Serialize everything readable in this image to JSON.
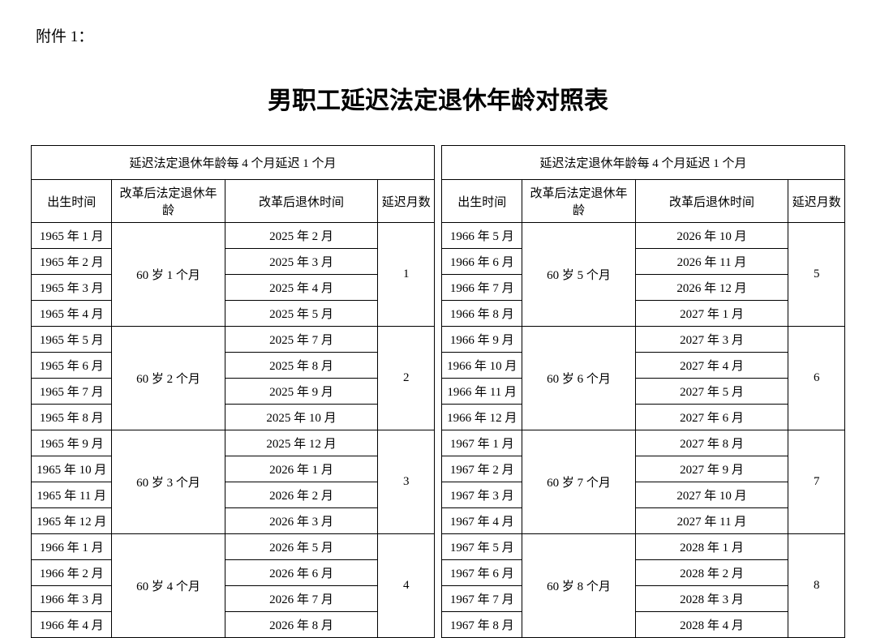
{
  "attachment_label": "附件 1：",
  "main_title": "男职工延迟法定退休年龄对照表",
  "section_header": "延迟法定退休年龄每 4 个月延迟 1 个月",
  "columns": {
    "birth": "出生时间",
    "age": "改革后法定退休年龄",
    "retire": "改革后退休时间",
    "delay": "延迟月数"
  },
  "left": {
    "groups": [
      {
        "age": "60 岁 1 个月",
        "delay": "1",
        "rows": [
          {
            "birth": "1965 年 1 月",
            "retire": "2025 年 2 月"
          },
          {
            "birth": "1965 年 2 月",
            "retire": "2025 年 3 月"
          },
          {
            "birth": "1965 年 3 月",
            "retire": "2025 年 4 月"
          },
          {
            "birth": "1965 年 4 月",
            "retire": "2025 年 5 月"
          }
        ]
      },
      {
        "age": "60 岁 2 个月",
        "delay": "2",
        "rows": [
          {
            "birth": "1965 年 5 月",
            "retire": "2025 年 7 月"
          },
          {
            "birth": "1965 年 6 月",
            "retire": "2025 年 8 月"
          },
          {
            "birth": "1965 年 7 月",
            "retire": "2025 年 9 月"
          },
          {
            "birth": "1965 年 8 月",
            "retire": "2025 年 10 月"
          }
        ]
      },
      {
        "age": "60 岁 3 个月",
        "delay": "3",
        "rows": [
          {
            "birth": "1965 年 9 月",
            "retire": "2025 年 12 月"
          },
          {
            "birth": "1965 年 10 月",
            "retire": "2026 年 1 月"
          },
          {
            "birth": "1965 年 11 月",
            "retire": "2026 年 2 月"
          },
          {
            "birth": "1965 年 12 月",
            "retire": "2026 年 3 月"
          }
        ]
      },
      {
        "age": "60 岁 4 个月",
        "delay": "4",
        "rows": [
          {
            "birth": "1966 年 1 月",
            "retire": "2026 年 5 月"
          },
          {
            "birth": "1966 年 2 月",
            "retire": "2026 年 6 月"
          },
          {
            "birth": "1966 年 3 月",
            "retire": "2026 年 7 月"
          },
          {
            "birth": "1966 年 4 月",
            "retire": "2026 年 8 月"
          }
        ]
      }
    ]
  },
  "right": {
    "groups": [
      {
        "age": "60 岁 5 个月",
        "delay": "5",
        "rows": [
          {
            "birth": "1966 年 5 月",
            "retire": "2026 年 10 月"
          },
          {
            "birth": "1966 年 6 月",
            "retire": "2026 年 11 月"
          },
          {
            "birth": "1966 年 7 月",
            "retire": "2026 年 12 月"
          },
          {
            "birth": "1966 年 8 月",
            "retire": "2027 年 1 月"
          }
        ]
      },
      {
        "age": "60 岁 6 个月",
        "delay": "6",
        "rows": [
          {
            "birth": "1966 年 9 月",
            "retire": "2027 年 3 月"
          },
          {
            "birth": "1966 年 10 月",
            "retire": "2027 年 4 月"
          },
          {
            "birth": "1966 年 11 月",
            "retire": "2027 年 5 月"
          },
          {
            "birth": "1966 年 12 月",
            "retire": "2027 年 6 月"
          }
        ]
      },
      {
        "age": "60 岁 7 个月",
        "delay": "7",
        "rows": [
          {
            "birth": "1967 年 1 月",
            "retire": "2027 年 8 月"
          },
          {
            "birth": "1967 年 2 月",
            "retire": "2027 年 9 月"
          },
          {
            "birth": "1967 年 3 月",
            "retire": "2027 年 10 月"
          },
          {
            "birth": "1967 年 4 月",
            "retire": "2027 年 11 月"
          }
        ]
      },
      {
        "age": "60 岁 8 个月",
        "delay": "8",
        "rows": [
          {
            "birth": "1967 年 5 月",
            "retire": "2028 年 1 月"
          },
          {
            "birth": "1967 年 6 月",
            "retire": "2028 年 2 月"
          },
          {
            "birth": "1967 年 7 月",
            "retire": "2028 年 3 月"
          },
          {
            "birth": "1967 年 8 月",
            "retire": "2028 年 4 月"
          }
        ]
      }
    ]
  }
}
